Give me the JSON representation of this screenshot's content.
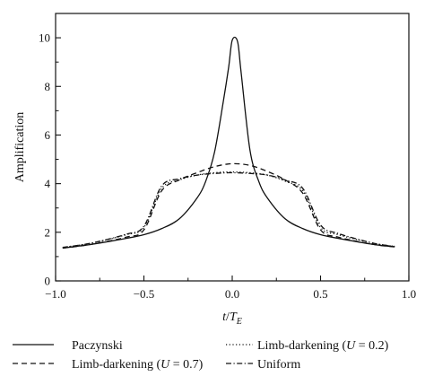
{
  "chart_data": {
    "type": "line",
    "xlabel": "t/T_E",
    "ylabel": "Amplification",
    "xlim": [
      -1.0,
      1.0
    ],
    "ylim": [
      0,
      11
    ],
    "x_ticks": [
      -1.0,
      -0.5,
      0.0,
      0.5,
      1.0
    ],
    "x_tick_labels": [
      "−1.0",
      "−0.5",
      "0.0",
      "0.5",
      "1.0"
    ],
    "y_ticks": [
      0,
      2,
      4,
      6,
      8,
      10
    ],
    "y_tick_labels": [
      "0",
      "2",
      "4",
      "6",
      "8",
      "10"
    ],
    "legend_position": "bottom, below plot",
    "series": [
      {
        "name": "Paczynski",
        "style": "solid",
        "x": [
          -0.96,
          -0.8,
          -0.6,
          -0.5,
          -0.4,
          -0.3,
          -0.2,
          -0.15,
          -0.1,
          -0.05,
          -0.02,
          0.0,
          0.03,
          0.05,
          0.1,
          0.15,
          0.2,
          0.3,
          0.4,
          0.5,
          0.6,
          0.8,
          0.92
        ],
        "y": [
          1.35,
          1.5,
          1.75,
          1.9,
          2.15,
          2.55,
          3.4,
          4.1,
          5.3,
          7.4,
          8.8,
          9.9,
          9.85,
          8.6,
          5.4,
          4.1,
          3.4,
          2.55,
          2.15,
          1.9,
          1.75,
          1.5,
          1.4
        ]
      },
      {
        "name": "Limb-darkening (U = 0.7)",
        "style": "dashed",
        "x": [
          -0.96,
          -0.8,
          -0.6,
          -0.5,
          -0.4,
          -0.3,
          -0.2,
          -0.1,
          0.0,
          0.1,
          0.2,
          0.3,
          0.4,
          0.5,
          0.6,
          0.8,
          0.92
        ],
        "y": [
          1.35,
          1.5,
          1.8,
          2.1,
          3.7,
          4.15,
          4.45,
          4.7,
          4.82,
          4.75,
          4.5,
          4.15,
          3.6,
          2.1,
          1.8,
          1.5,
          1.4
        ]
      },
      {
        "name": "Limb-darkening (U = 0.2)",
        "style": "dotted",
        "x": [
          -0.96,
          -0.8,
          -0.6,
          -0.5,
          -0.4,
          -0.3,
          -0.2,
          -0.1,
          0.0,
          0.1,
          0.2,
          0.3,
          0.4,
          0.5,
          0.6,
          0.8,
          0.92
        ],
        "y": [
          1.37,
          1.55,
          1.9,
          2.2,
          3.8,
          4.15,
          4.35,
          4.45,
          4.48,
          4.45,
          4.35,
          4.1,
          3.7,
          2.2,
          1.9,
          1.55,
          1.42
        ]
      },
      {
        "name": "Uniform",
        "style": "dashdot",
        "x": [
          -0.96,
          -0.8,
          -0.6,
          -0.5,
          -0.4,
          -0.3,
          -0.2,
          -0.1,
          0.0,
          0.1,
          0.2,
          0.3,
          0.4,
          0.5,
          0.6,
          0.8,
          0.92
        ],
        "y": [
          1.38,
          1.55,
          1.92,
          2.25,
          3.9,
          4.2,
          4.35,
          4.42,
          4.45,
          4.42,
          4.35,
          4.15,
          3.8,
          2.3,
          1.95,
          1.55,
          1.42
        ]
      }
    ]
  },
  "legend": {
    "paczynski": "Paczynski",
    "limb07_prefix": "Limb-darkening (",
    "limb07_var": "U",
    "limb07_suffix": " = 0.7)",
    "limb02_prefix": "Limb-darkening (",
    "limb02_var": "U",
    "limb02_suffix": " = 0.2)",
    "uniform": "Uniform"
  },
  "axis_labels": {
    "x_t": "t",
    "x_slash": "/",
    "x_T": "T",
    "x_sub": "E",
    "y": "Amplification"
  }
}
